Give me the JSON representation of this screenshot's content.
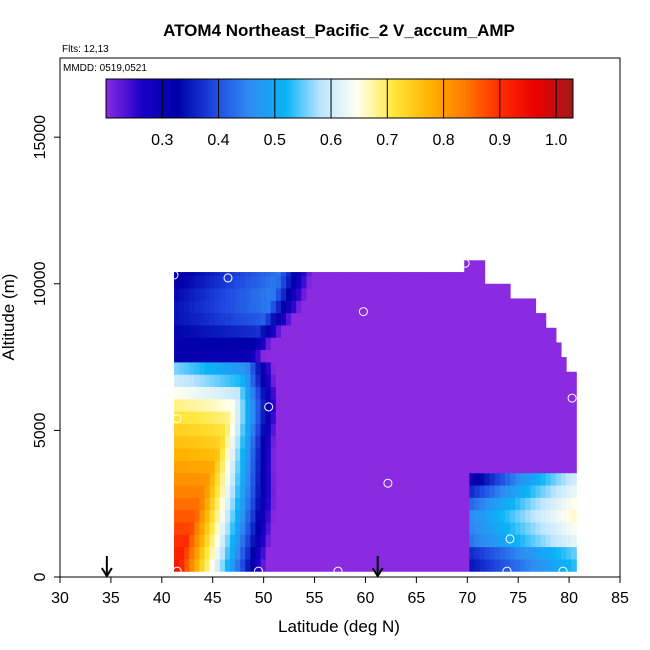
{
  "chart_data": {
    "type": "heatmap",
    "title": "ATOM4 Northeast_Pacific_2 V_accum_AMP",
    "annotations": [
      "Flts: 12,13",
      "MMDD: 0519,0521"
    ],
    "xlabel": "Latitude (deg N)",
    "ylabel": "Altitude (m)",
    "xlim": [
      30,
      85
    ],
    "ylim": [
      0,
      17700
    ],
    "x_ticks": [
      30,
      35,
      40,
      45,
      50,
      55,
      60,
      65,
      70,
      75,
      80,
      85
    ],
    "y_ticks": [
      0,
      5000,
      10000,
      15000
    ],
    "colorbar": {
      "range": [
        0.2,
        1.03
      ],
      "ticks": [
        0.3,
        0.4,
        0.5,
        0.6,
        0.7,
        0.8,
        0.9,
        1.0
      ],
      "tick_labels": [
        "0.3",
        "0.4",
        "0.5",
        "0.6",
        "0.7",
        "0.8",
        "0.9",
        "1.0"
      ],
      "colors": [
        "#8a2be2",
        "#1a00c8",
        "#0000a8",
        "#1f47e0",
        "#2f8cf2",
        "#0ab4f7",
        "#bfe6ff",
        "#fffff0",
        "#ffe83c",
        "#ffb300",
        "#ff7a00",
        "#ff2a00",
        "#e80000",
        "#a31a1a"
      ]
    },
    "data_extent": {
      "lat_min": 41.2,
      "lat_max": 80.5,
      "alt_min": 200,
      "alt_max": 10800,
      "top_edge_by_lat": [
        [
          41.2,
          10400
        ],
        [
          69,
          10400
        ],
        [
          69.5,
          10800
        ],
        [
          71,
          10800
        ],
        [
          71.5,
          10000
        ],
        [
          73.5,
          10000
        ],
        [
          74,
          9500
        ],
        [
          76,
          9500
        ],
        [
          76.5,
          9000
        ],
        [
          77.5,
          8500
        ],
        [
          78.5,
          8000
        ],
        [
          79,
          7500
        ],
        [
          79.5,
          7000
        ],
        [
          80.5,
          6700
        ]
      ]
    },
    "profile_markers": [
      {
        "lat": 41.2,
        "alt": 10300
      },
      {
        "lat": 46.5,
        "alt": 10200
      },
      {
        "lat": 59.8,
        "alt": 9050
      },
      {
        "lat": 69.8,
        "alt": 10700
      },
      {
        "lat": 80.3,
        "alt": 6100
      },
      {
        "lat": 50.5,
        "alt": 5800
      },
      {
        "lat": 41.5,
        "alt": 5400
      },
      {
        "lat": 62.2,
        "alt": 3200
      },
      {
        "lat": 74.2,
        "alt": 1300
      },
      {
        "lat": 41.5,
        "alt": 200
      },
      {
        "lat": 49.5,
        "alt": 200
      },
      {
        "lat": 57.3,
        "alt": 200
      },
      {
        "lat": 73.9,
        "alt": 200
      },
      {
        "lat": 79.4,
        "alt": 200
      }
    ],
    "arrows_at_lat": [
      34.6,
      61.2
    ]
  }
}
